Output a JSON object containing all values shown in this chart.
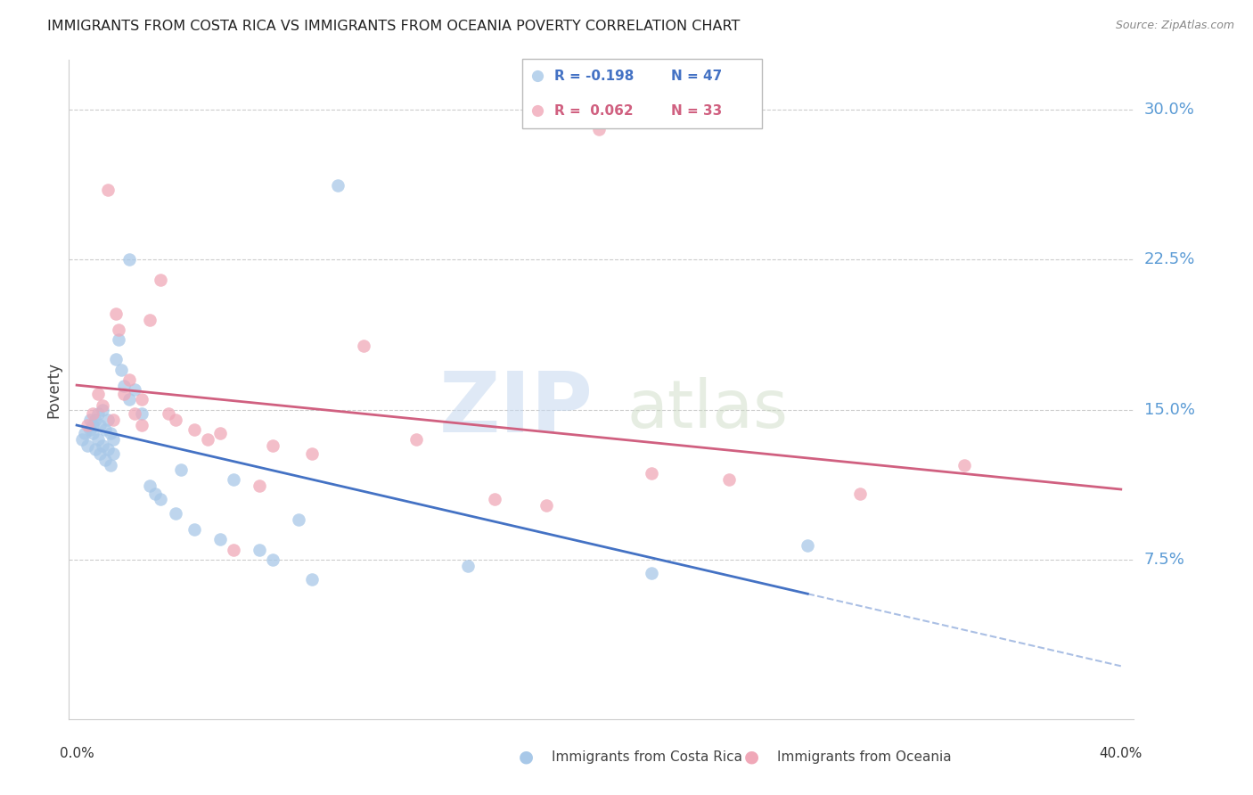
{
  "title": "IMMIGRANTS FROM COSTA RICA VS IMMIGRANTS FROM OCEANIA POVERTY CORRELATION CHART",
  "source": "Source: ZipAtlas.com",
  "ylabel": "Poverty",
  "color_blue": "#A8C8E8",
  "color_pink": "#F0A8B8",
  "color_blue_line": "#4472C4",
  "color_pink_line": "#D06080",
  "color_ytick_label": "#5B9BD5",
  "color_xtick_label": "#333333",
  "watermark_color": "#B8D4F0",
  "costa_rica_x": [
    0.002,
    0.003,
    0.004,
    0.005,
    0.005,
    0.006,
    0.006,
    0.007,
    0.007,
    0.008,
    0.008,
    0.009,
    0.009,
    0.01,
    0.01,
    0.011,
    0.011,
    0.012,
    0.012,
    0.013,
    0.013,
    0.014,
    0.014,
    0.015,
    0.016,
    0.017,
    0.018,
    0.02,
    0.022,
    0.025,
    0.028,
    0.032,
    0.038,
    0.045,
    0.055,
    0.07,
    0.085,
    0.1,
    0.06,
    0.04,
    0.03,
    0.02,
    0.15,
    0.22,
    0.28,
    0.075,
    0.09
  ],
  "costa_rica_y": [
    0.135,
    0.138,
    0.132,
    0.14,
    0.145,
    0.138,
    0.142,
    0.13,
    0.145,
    0.135,
    0.148,
    0.128,
    0.142,
    0.132,
    0.15,
    0.125,
    0.14,
    0.13,
    0.145,
    0.122,
    0.138,
    0.128,
    0.135,
    0.175,
    0.185,
    0.17,
    0.162,
    0.155,
    0.16,
    0.148,
    0.112,
    0.105,
    0.098,
    0.09,
    0.085,
    0.08,
    0.095,
    0.262,
    0.115,
    0.12,
    0.108,
    0.225,
    0.072,
    0.068,
    0.082,
    0.075,
    0.065
  ],
  "oceania_x": [
    0.004,
    0.006,
    0.008,
    0.01,
    0.012,
    0.014,
    0.015,
    0.016,
    0.018,
    0.02,
    0.022,
    0.025,
    0.028,
    0.032,
    0.038,
    0.045,
    0.055,
    0.06,
    0.075,
    0.09,
    0.11,
    0.13,
    0.16,
    0.2,
    0.25,
    0.3,
    0.34,
    0.025,
    0.035,
    0.05,
    0.07,
    0.18,
    0.22
  ],
  "oceania_y": [
    0.142,
    0.148,
    0.158,
    0.152,
    0.26,
    0.145,
    0.198,
    0.19,
    0.158,
    0.165,
    0.148,
    0.155,
    0.195,
    0.215,
    0.145,
    0.14,
    0.138,
    0.08,
    0.132,
    0.128,
    0.182,
    0.135,
    0.105,
    0.29,
    0.115,
    0.108,
    0.122,
    0.142,
    0.148,
    0.135,
    0.112,
    0.102,
    0.118
  ],
  "ytick_vals": [
    0.075,
    0.15,
    0.225,
    0.3
  ],
  "ytick_labels": [
    "7.5%",
    "15.0%",
    "22.5%",
    "30.0%"
  ],
  "xlim": [
    0.0,
    0.4
  ],
  "ylim": [
    0.0,
    0.32
  ]
}
